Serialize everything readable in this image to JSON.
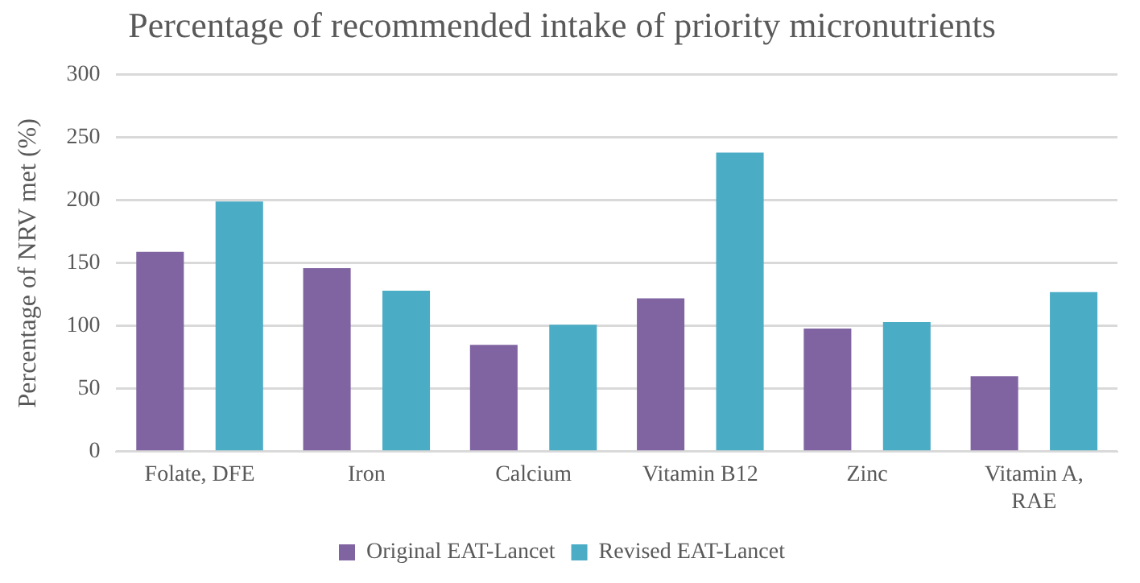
{
  "chart_data": {
    "type": "bar",
    "title": "Percentage of recommended intake of priority micronutrients",
    "ylabel": "Percentage of NRV met (%)",
    "categories": [
      "Folate, DFE",
      "Iron",
      "Calcium",
      "Vitamin B12",
      "Zinc",
      "Vitamin A, RAE"
    ],
    "series": [
      {
        "name": "Original EAT-Lancet",
        "color": "#8064a2",
        "values": [
          159,
          146,
          85,
          122,
          98,
          60
        ]
      },
      {
        "name": "Revised EAT-Lancet",
        "color": "#4bacc6",
        "values": [
          199,
          128,
          101,
          238,
          103,
          127
        ]
      }
    ],
    "ylim": [
      0,
      300
    ],
    "yticks": [
      0,
      50,
      100,
      150,
      200,
      250,
      300
    ],
    "grid": "y",
    "legend": "bottom"
  }
}
